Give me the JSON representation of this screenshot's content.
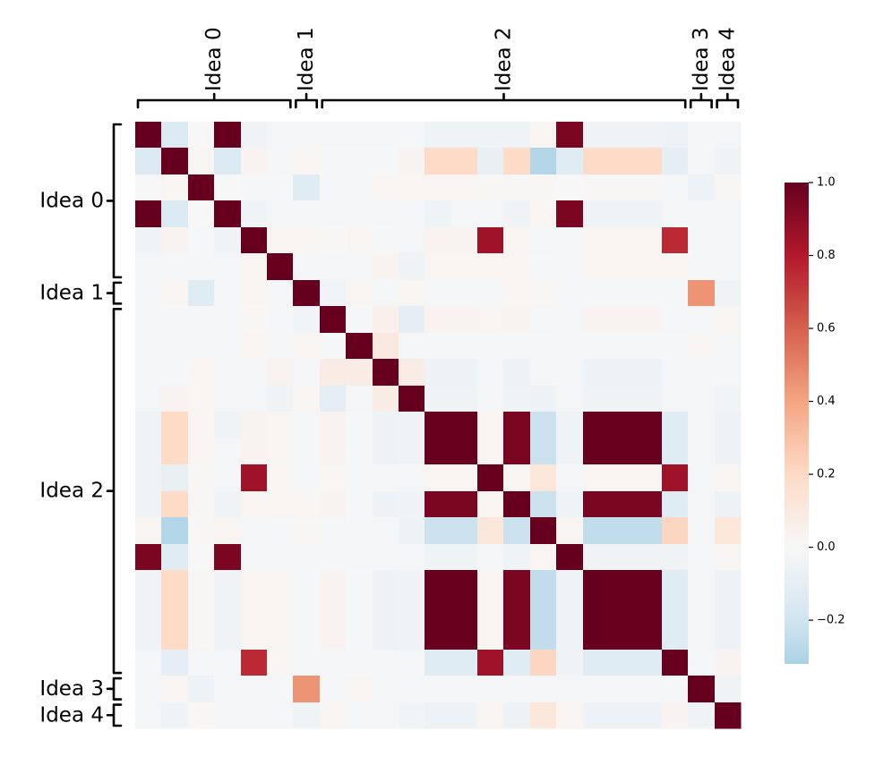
{
  "chart_data": {
    "type": "heatmap",
    "title": "",
    "size": 23,
    "groups": [
      {
        "name": "Idea 0",
        "start": 0,
        "end": 5
      },
      {
        "name": "Idea 1",
        "start": 6,
        "end": 6
      },
      {
        "name": "Idea 2",
        "start": 7,
        "end": 20
      },
      {
        "name": "Idea 3",
        "start": 21,
        "end": 21
      },
      {
        "name": "Idea 4",
        "start": 22,
        "end": 22
      }
    ],
    "vmin": -0.32,
    "vmax": 1.0,
    "colorbar": {
      "ticks": [
        1.0,
        0.8,
        0.6,
        0.4,
        0.2,
        0.0,
        -0.2
      ],
      "tick_labels": [
        "1.0",
        "0.8",
        "0.6",
        "0.4",
        "0.2",
        "0.0",
        "−0.2"
      ]
    },
    "colormap": [
      "#053061",
      "#2166ac",
      "#4393c3",
      "#92c5de",
      "#d1e5f0",
      "#f7f7f7",
      "#fddbc7",
      "#f4a582",
      "#d6604d",
      "#b2182b",
      "#67001f"
    ],
    "values": [
      [
        1,
        -0.15,
        0,
        1,
        -0.04,
        -0.02,
        -0.02,
        -0.02,
        -0.02,
        -0.02,
        -0.02,
        -0.05,
        -0.05,
        -0.05,
        -0.05,
        0.02,
        0.95,
        -0.04,
        -0.04,
        -0.04,
        -0.06,
        -0.02,
        -0.02
      ],
      [
        -0.15,
        1,
        0.02,
        -0.15,
        0.03,
        -0.02,
        0.02,
        -0.01,
        -0.01,
        -0.01,
        0.03,
        0.2,
        0.2,
        -0.08,
        0.2,
        -0.3,
        -0.12,
        0.2,
        0.2,
        0.2,
        -0.1,
        -0.02,
        -0.04
      ],
      [
        0,
        0.02,
        1,
        0,
        -0.01,
        -0.01,
        -0.12,
        -0.01,
        -0.01,
        0.02,
        0.02,
        0.02,
        0.02,
        0.01,
        0.01,
        0.01,
        0,
        0.01,
        0.01,
        0.01,
        -0.02,
        -0.06,
        0.01
      ],
      [
        1,
        -0.15,
        0,
        1,
        -0.04,
        -0.02,
        -0.02,
        -0.02,
        -0.02,
        -0.02,
        -0.02,
        -0.05,
        -0.02,
        -0.02,
        -0.04,
        0.02,
        0.95,
        -0.04,
        -0.04,
        -0.04,
        -0.02,
        -0.02,
        -0.02
      ],
      [
        -0.04,
        0.03,
        -0.01,
        -0.04,
        1,
        0.02,
        0.02,
        0.01,
        0.02,
        -0.01,
        -0.02,
        0.03,
        0.03,
        0.85,
        0.02,
        -0.02,
        -0.02,
        0.02,
        0.02,
        0.02,
        0.75,
        -0.02,
        -0.02
      ],
      [
        -0.02,
        -0.02,
        -0.01,
        -0.02,
        0.02,
        1,
        -0.02,
        -0.02,
        -0.02,
        0.03,
        -0.04,
        0.02,
        0.02,
        0.02,
        0.02,
        -0.01,
        -0.02,
        0.02,
        0.02,
        0.02,
        0.02,
        -0.02,
        -0.02
      ],
      [
        -0.02,
        0.02,
        -0.12,
        -0.02,
        0.02,
        -0.02,
        1,
        -0.03,
        0.02,
        -0.02,
        0.02,
        -0.02,
        -0.02,
        -0.02,
        0.02,
        0.01,
        -0.02,
        -0.02,
        -0.02,
        -0.02,
        -0.02,
        0.45,
        -0.05
      ],
      [
        -0.02,
        -0.01,
        -0.01,
        -0.02,
        0.01,
        -0.02,
        -0.03,
        1,
        -0.01,
        0.05,
        -0.1,
        0.03,
        0.03,
        0.02,
        0.03,
        -0.02,
        -0.02,
        0.03,
        0.03,
        0.03,
        -0.02,
        -0.02,
        0.02
      ],
      [
        -0.02,
        -0.01,
        -0.01,
        -0.02,
        0.02,
        -0.02,
        0.02,
        -0.01,
        1,
        0.1,
        -0.02,
        -0.01,
        -0.01,
        -0.01,
        -0.01,
        -0.01,
        -0.02,
        -0.01,
        -0.01,
        -0.01,
        -0.01,
        0.02,
        -0.02
      ],
      [
        -0.02,
        -0.01,
        0.02,
        -0.02,
        -0.01,
        0.03,
        -0.02,
        0.08,
        0.08,
        1,
        0.08,
        -0.06,
        -0.06,
        -0.02,
        -0.06,
        -0.02,
        -0.02,
        -0.06,
        -0.06,
        -0.06,
        -0.02,
        -0.02,
        -0.02
      ],
      [
        -0.02,
        0.03,
        0.02,
        -0.02,
        -0.02,
        -0.04,
        0.02,
        -0.1,
        -0.02,
        0.08,
        1,
        -0.04,
        -0.04,
        -0.02,
        -0.04,
        -0.06,
        -0.02,
        -0.04,
        -0.04,
        -0.04,
        -0.02,
        -0.02,
        -0.03
      ],
      [
        -0.05,
        0.2,
        0.02,
        -0.05,
        0.03,
        0.02,
        -0.02,
        0.03,
        -0.01,
        -0.06,
        -0.04,
        1,
        1,
        0.02,
        0.95,
        -0.22,
        -0.05,
        1,
        1,
        1,
        -0.12,
        -0.02,
        -0.06
      ],
      [
        -0.05,
        0.2,
        0.02,
        -0.02,
        0.03,
        0.02,
        -0.02,
        0.03,
        -0.01,
        -0.06,
        -0.04,
        1,
        1,
        0.02,
        0.95,
        -0.22,
        -0.05,
        1,
        1,
        1,
        -0.12,
        -0.02,
        -0.06
      ],
      [
        -0.05,
        -0.08,
        0.01,
        -0.02,
        0.85,
        0.02,
        -0.02,
        0.02,
        -0.01,
        -0.02,
        -0.02,
        0.02,
        0.02,
        1,
        0.02,
        0.12,
        -0.02,
        0.02,
        0.02,
        0.02,
        0.85,
        -0.02,
        0.02
      ],
      [
        -0.05,
        0.2,
        0.01,
        -0.04,
        0.02,
        0.02,
        0.02,
        0.03,
        -0.01,
        -0.06,
        -0.04,
        0.95,
        0.95,
        0.02,
        1,
        -0.22,
        -0.05,
        0.95,
        0.95,
        0.95,
        -0.12,
        -0.02,
        -0.06
      ],
      [
        0.02,
        -0.3,
        0.01,
        0.02,
        -0.02,
        -0.01,
        0.01,
        -0.02,
        -0.01,
        -0.02,
        -0.06,
        -0.22,
        -0.22,
        0.12,
        -0.22,
        1,
        0.02,
        -0.25,
        -0.25,
        -0.25,
        0.22,
        -0.02,
        0.12
      ],
      [
        0.95,
        -0.12,
        0,
        0.95,
        -0.02,
        -0.02,
        -0.02,
        -0.02,
        -0.02,
        -0.02,
        -0.02,
        -0.05,
        -0.05,
        -0.02,
        -0.05,
        0.02,
        1,
        -0.04,
        -0.04,
        -0.04,
        -0.04,
        -0.02,
        0.02
      ],
      [
        -0.04,
        0.2,
        0.01,
        -0.04,
        0.02,
        0.02,
        -0.02,
        0.03,
        -0.01,
        -0.06,
        -0.04,
        1,
        1,
        0.02,
        0.95,
        -0.25,
        -0.04,
        1,
        1,
        1,
        -0.12,
        -0.02,
        -0.06
      ],
      [
        -0.04,
        0.2,
        0.01,
        -0.04,
        0.02,
        0.02,
        -0.02,
        0.03,
        -0.01,
        -0.06,
        -0.04,
        1,
        1,
        0.02,
        0.95,
        -0.25,
        -0.04,
        1,
        1,
        1,
        -0.12,
        -0.02,
        -0.06
      ],
      [
        -0.04,
        0.2,
        0.01,
        -0.04,
        0.02,
        0.02,
        -0.02,
        0.03,
        -0.01,
        -0.06,
        -0.04,
        1,
        1,
        0.02,
        0.95,
        -0.25,
        -0.04,
        1,
        1,
        1,
        -0.12,
        -0.02,
        -0.06
      ],
      [
        -0.02,
        -0.1,
        -0.02,
        -0.02,
        0.75,
        0.02,
        -0.02,
        -0.02,
        -0.01,
        -0.02,
        -0.02,
        -0.12,
        -0.12,
        0.85,
        -0.12,
        0.22,
        -0.04,
        -0.12,
        -0.12,
        -0.12,
        1,
        -0.02,
        0.03
      ],
      [
        -0.02,
        0.02,
        -0.06,
        -0.02,
        -0.02,
        -0.02,
        0.45,
        -0.02,
        0.02,
        -0.02,
        -0.02,
        -0.02,
        -0.02,
        -0.02,
        -0.02,
        -0.02,
        -0.02,
        -0.02,
        -0.02,
        -0.02,
        -0.02,
        1,
        -0.04
      ],
      [
        -0.02,
        -0.04,
        0.01,
        -0.02,
        -0.02,
        -0.02,
        -0.05,
        0.02,
        -0.02,
        -0.02,
        -0.03,
        -0.06,
        -0.06,
        0.02,
        -0.06,
        0.12,
        0.02,
        -0.06,
        -0.06,
        -0.06,
        0.03,
        -0.04,
        1
      ]
    ]
  }
}
